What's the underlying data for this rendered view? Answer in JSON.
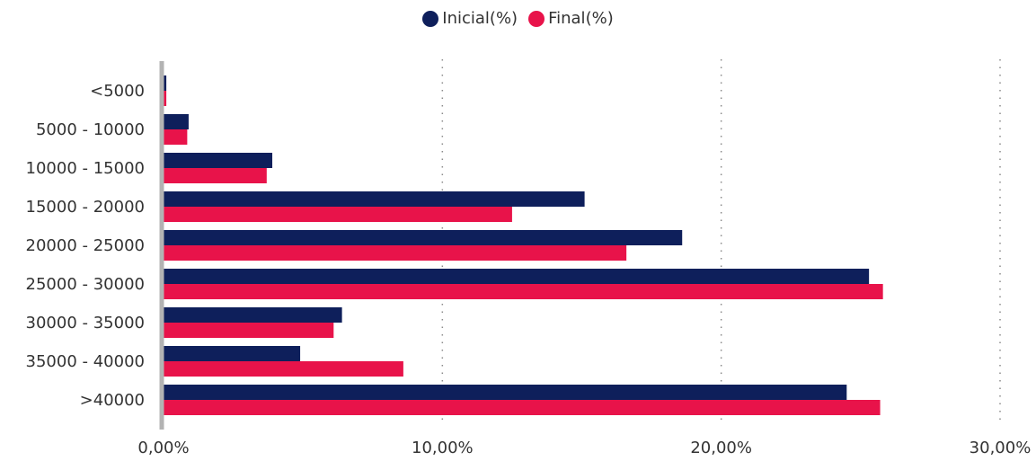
{
  "chart_data": {
    "type": "bar",
    "orientation": "horizontal",
    "categories": [
      "<5000",
      "5000 - 10000",
      "10000 - 15000",
      "15000 - 20000",
      "20000 - 25000",
      "25000 - 30000",
      "30000 - 35000",
      "35000 - 40000",
      ">40000"
    ],
    "series": [
      {
        "name": "Inicial(%)",
        "color": "#0e1f5b",
        "values": [
          0.1,
          0.9,
          3.9,
          15.1,
          18.6,
          25.3,
          6.4,
          4.9,
          24.5
        ]
      },
      {
        "name": "Final(%)",
        "color": "#e8134a",
        "values": [
          0.1,
          0.85,
          3.7,
          12.5,
          16.6,
          25.8,
          6.1,
          8.6,
          25.7
        ]
      }
    ],
    "xlim": [
      0,
      30
    ],
    "xticks": [
      0,
      10,
      20,
      30
    ],
    "xtick_labels": [
      "0,00%",
      "10,00%",
      "20,00%",
      "30,00%"
    ],
    "grid": "vertical dotted",
    "legend_position": "top-center",
    "title": "",
    "xlabel": "",
    "ylabel": ""
  }
}
